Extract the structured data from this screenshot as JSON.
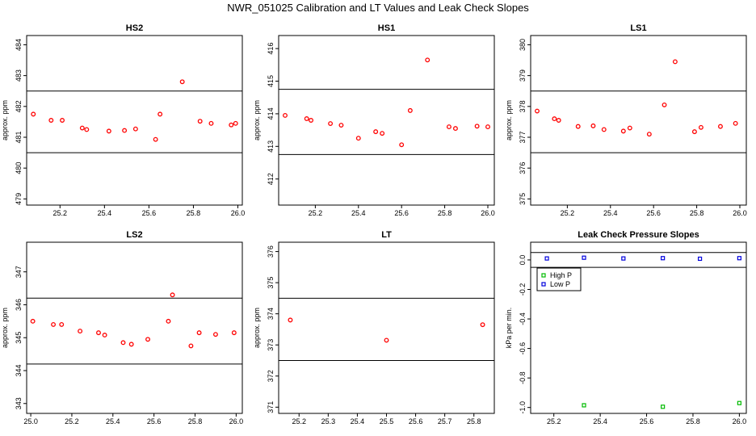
{
  "title": "NWR_051025  Calibration and LT Values and Leak Check Slopes",
  "colors": {
    "points": "#ff0000",
    "high_p": "#00bb00",
    "low_p": "#0000dd",
    "axes": "#000000"
  },
  "chart_data": [
    {
      "type": "scatter",
      "title": "HS2",
      "ylabel": "approx. ppm",
      "xlim": [
        25.05,
        26.02
      ],
      "ylim": [
        478.8,
        484.3
      ],
      "xticks": [
        "25.2",
        "25.4",
        "25.6",
        "25.8",
        "26.0"
      ],
      "yticks": [
        "479",
        "480",
        "481",
        "482",
        "483",
        "484"
      ],
      "hlines": [
        482.5,
        480.5
      ],
      "x": [
        25.08,
        25.16,
        25.21,
        25.3,
        25.32,
        25.42,
        25.49,
        25.54,
        25.63,
        25.65,
        25.75,
        25.83,
        25.88,
        25.97,
        25.99
      ],
      "y": [
        481.75,
        481.55,
        481.55,
        481.3,
        481.25,
        481.2,
        481.22,
        481.27,
        480.93,
        481.75,
        482.8,
        481.52,
        481.45,
        481.4,
        481.45
      ]
    },
    {
      "type": "scatter",
      "title": "HS1",
      "ylabel": "approx. ppm",
      "xlim": [
        25.03,
        26.03
      ],
      "ylim": [
        411.2,
        416.4
      ],
      "xticks": [
        "25.2",
        "25.4",
        "25.6",
        "25.8",
        "26.0"
      ],
      "yticks": [
        "412",
        "413",
        "414",
        "415",
        "416"
      ],
      "hlines": [
        414.75,
        412.75
      ],
      "x": [
        25.06,
        25.16,
        25.18,
        25.27,
        25.32,
        25.4,
        25.48,
        25.51,
        25.6,
        25.64,
        25.72,
        25.82,
        25.85,
        25.95,
        26.0
      ],
      "y": [
        413.95,
        413.85,
        413.8,
        413.7,
        413.65,
        413.25,
        413.45,
        413.4,
        413.05,
        414.1,
        415.65,
        413.6,
        413.55,
        413.62,
        413.6
      ]
    },
    {
      "type": "scatter",
      "title": "LS1",
      "ylabel": "approx. ppm",
      "xlim": [
        25.03,
        26.03
      ],
      "ylim": [
        374.8,
        380.3
      ],
      "xticks": [
        "25.2",
        "25.4",
        "25.6",
        "25.8",
        "26.0"
      ],
      "yticks": [
        "375",
        "376",
        "377",
        "378",
        "379",
        "380"
      ],
      "hlines": [
        378.5,
        376.5
      ],
      "x": [
        25.06,
        25.14,
        25.16,
        25.25,
        25.32,
        25.37,
        25.46,
        25.49,
        25.58,
        25.65,
        25.7,
        25.79,
        25.82,
        25.91,
        25.98
      ],
      "y": [
        377.85,
        377.6,
        377.55,
        377.35,
        377.37,
        377.25,
        377.2,
        377.3,
        377.1,
        378.05,
        379.45,
        377.18,
        377.32,
        377.35,
        377.45
      ]
    },
    {
      "type": "scatter",
      "title": "LS2",
      "ylabel": "approx. ppm",
      "xlim": [
        24.98,
        26.03
      ],
      "ylim": [
        342.7,
        347.9
      ],
      "xticks": [
        "25.0",
        "25.2",
        "25.4",
        "25.6",
        "25.8",
        "26.0"
      ],
      "yticks": [
        "343",
        "344",
        "345",
        "346",
        "347"
      ],
      "hlines": [
        346.2,
        344.2
      ],
      "x": [
        25.01,
        25.11,
        25.15,
        25.24,
        25.33,
        25.36,
        25.45,
        25.49,
        25.57,
        25.67,
        25.69,
        25.78,
        25.82,
        25.9,
        25.99
      ],
      "y": [
        345.5,
        345.4,
        345.4,
        345.2,
        345.15,
        345.08,
        344.85,
        344.8,
        344.95,
        345.5,
        346.3,
        344.75,
        345.15,
        345.1,
        345.15
      ]
    },
    {
      "type": "scatter",
      "title": "LT",
      "ylabel": "approx. ppm",
      "xlim": [
        25.13,
        25.87
      ],
      "ylim": [
        370.8,
        376.3
      ],
      "xticks": [
        "25.2",
        "25.3",
        "25.4",
        "25.5",
        "25.6",
        "25.7",
        "25.8"
      ],
      "yticks": [
        "371",
        "372",
        "373",
        "374",
        "375",
        "376"
      ],
      "hlines": [
        374.5,
        372.5
      ],
      "x": [
        25.17,
        25.5,
        25.83
      ],
      "y": [
        373.8,
        373.15,
        373.65
      ]
    },
    {
      "type": "scatter",
      "title": "Leak Check Pressure Slopes",
      "ylabel": "kPa per min.",
      "xlim": [
        25.1,
        26.03
      ],
      "ylim": [
        -1.04,
        0.12
      ],
      "xticks": [
        "25.2",
        "25.4",
        "25.6",
        "25.8",
        "26.0"
      ],
      "yticks": [
        "0.0",
        "-0.2",
        "-0.4",
        "-0.6",
        "-0.8",
        "-1.0"
      ],
      "hlines": [
        0.05,
        -0.05
      ],
      "legend": {
        "position": "top-left",
        "entries": [
          "High P",
          "Low P"
        ]
      },
      "series": [
        {
          "name": "High P",
          "x": [
            25.33,
            25.67,
            26.0
          ],
          "y": [
            -0.985,
            -0.995,
            -0.97
          ]
        },
        {
          "name": "Low P",
          "x": [
            25.17,
            25.33,
            25.5,
            25.67,
            25.83,
            26.0
          ],
          "y": [
            0.01,
            0.015,
            0.01,
            0.012,
            0.008,
            0.012
          ]
        }
      ]
    }
  ]
}
